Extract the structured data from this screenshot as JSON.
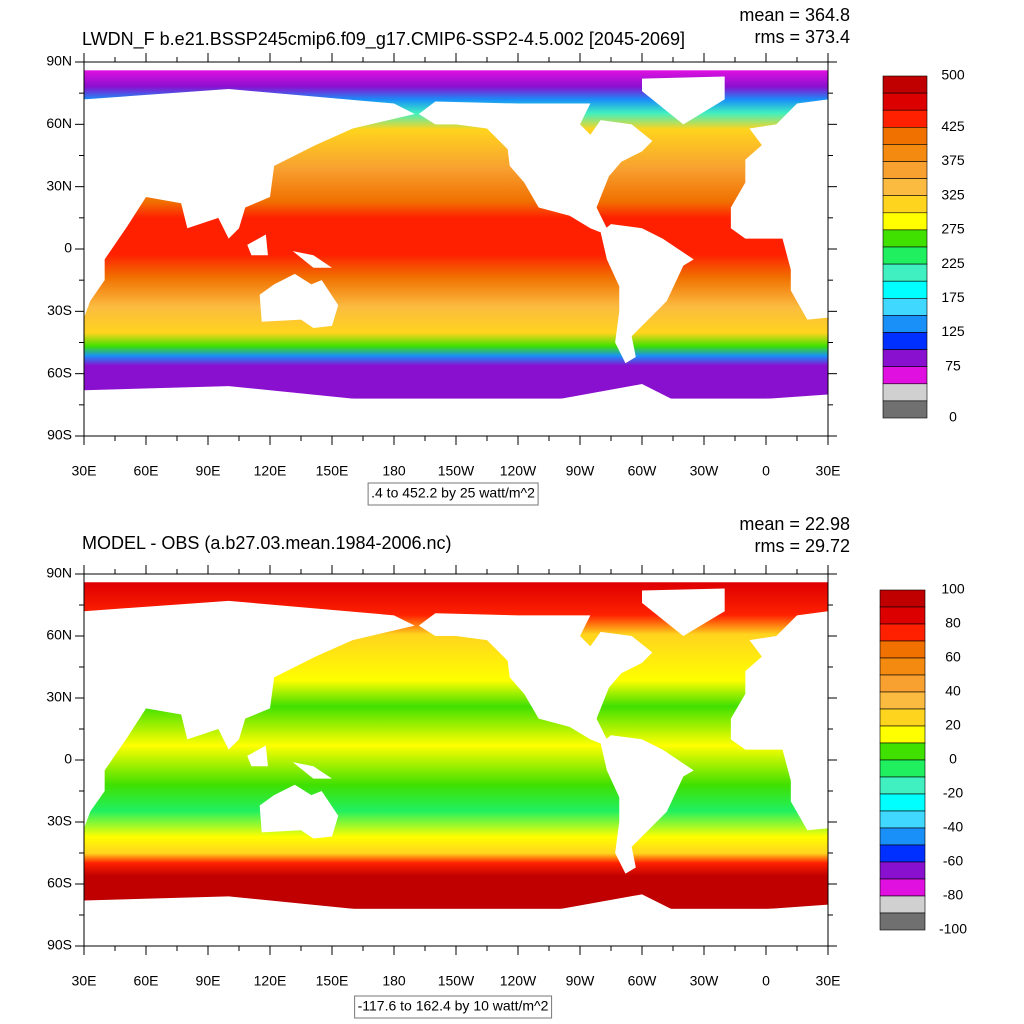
{
  "lat_labels": [
    "90N",
    "60N",
    "30N",
    "0",
    "30S",
    "60S",
    "90S"
  ],
  "lon_labels": [
    "30E",
    "60E",
    "90E",
    "120E",
    "150E",
    "180",
    "150W",
    "120W",
    "90W",
    "60W",
    "30W",
    "0",
    "30E"
  ],
  "panels": [
    {
      "title": "LWDN_F b.e21.BSSP245cmip6.f09_g17.CMIP6-SSP2-4.5.002 [2045-2069]",
      "mean": "mean = 364.8",
      "rms": "rms = 373.4",
      "caption": ".4 to 452.2 by 25 watt/m^2",
      "colorbar": {
        "labels": [
          "500",
          "425",
          "375",
          "325",
          "275",
          "225",
          "175",
          "125",
          "75",
          "0"
        ],
        "colors": [
          "#c00000",
          "#dd0000",
          "#ff2000",
          "#f07000",
          "#f58a10",
          "#f8a030",
          "#fbbb40",
          "#ffd41e",
          "#ffff00",
          "#40e000",
          "#20f060",
          "#40f0c0",
          "#00ffff",
          "#40d8ff",
          "#1890f8",
          "#0030ff",
          "#8a10d0",
          "#e010e0",
          "#d0d0d0",
          "#707070"
        ]
      }
    },
    {
      "title": "MODEL - OBS (a.b27.03.mean.1984-2006.nc)",
      "mean": "mean = 22.98",
      "rms": "rms = 29.72",
      "caption": "-117.6 to 162.4 by 10 watt/m^2",
      "colorbar": {
        "labels": [
          "100",
          "80",
          "60",
          "40",
          "20",
          "0",
          "-20",
          "-40",
          "-60",
          "-80",
          "-100"
        ],
        "colors": [
          "#c00000",
          "#dd0000",
          "#ff2000",
          "#f07000",
          "#f58a10",
          "#f8a030",
          "#fbbb40",
          "#ffd41e",
          "#ffff00",
          "#40e000",
          "#20f060",
          "#40f0c0",
          "#00ffff",
          "#40d8ff",
          "#1890f8",
          "#0030ff",
          "#8a10d0",
          "#e010e0",
          "#d0d0d0",
          "#707070"
        ]
      }
    }
  ]
}
